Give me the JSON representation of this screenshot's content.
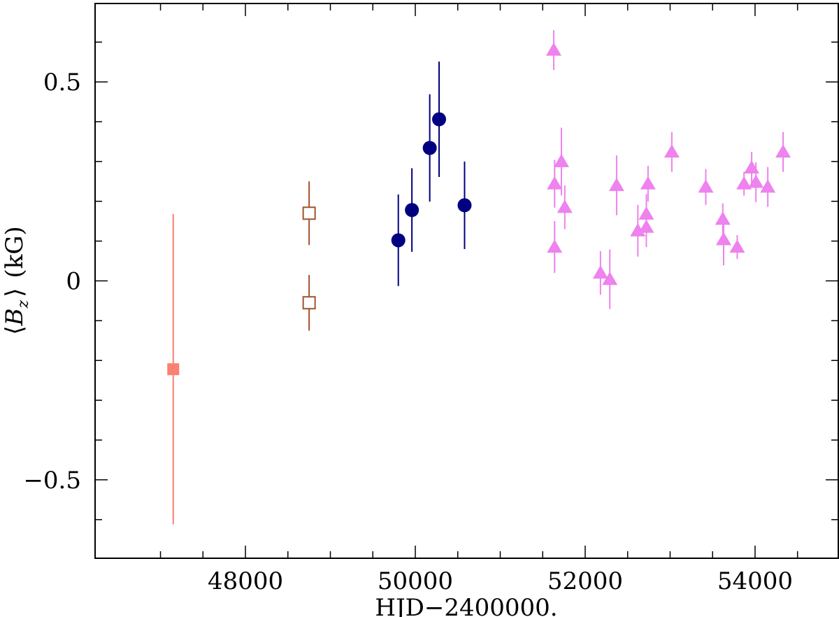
{
  "chart_data": {
    "type": "scatter",
    "title": "",
    "xlabel": "HJD−2400000.",
    "ylabel_parts": {
      "open": "⟨",
      "var": "B",
      "sub": "z",
      "close": "⟩",
      "unit": "(kG)"
    },
    "xlim": [
      46230,
      54980
    ],
    "ylim": [
      -0.697,
      0.697
    ],
    "x_ticks_major": [
      48000,
      50000,
      52000,
      54000
    ],
    "x_tick_labels": [
      "48000",
      "50000",
      "52000",
      "54000"
    ],
    "y_ticks_major": [
      -0.5,
      0,
      0.5
    ],
    "y_tick_labels": [
      "−0.5",
      "0",
      "0.5"
    ],
    "grid": false,
    "series": [
      {
        "marker": "filled-square",
        "color": "#FA8072",
        "points": [
          {
            "x": 47150,
            "y": -0.222,
            "err": 0.39
          }
        ]
      },
      {
        "marker": "open-square",
        "color": "#A0522D",
        "points": [
          {
            "x": 48750,
            "y": 0.17,
            "err": 0.08
          },
          {
            "x": 48750,
            "y": -0.055,
            "err": 0.07
          }
        ]
      },
      {
        "marker": "filled-circle",
        "color": "#000080",
        "points": [
          {
            "x": 49800,
            "y": 0.102,
            "err": 0.115
          },
          {
            "x": 49960,
            "y": 0.178,
            "err": 0.105
          },
          {
            "x": 50170,
            "y": 0.334,
            "err": 0.135
          },
          {
            "x": 50280,
            "y": 0.406,
            "err": 0.145
          },
          {
            "x": 50580,
            "y": 0.19,
            "err": 0.11
          }
        ]
      },
      {
        "marker": "filled-triangle",
        "color": "#EE82EE",
        "points": [
          {
            "x": 51630,
            "y": 0.58,
            "err": 0.05
          },
          {
            "x": 51720,
            "y": 0.3,
            "err": 0.085
          },
          {
            "x": 51640,
            "y": 0.244,
            "err": 0.06
          },
          {
            "x": 51760,
            "y": 0.185,
            "err": 0.055
          },
          {
            "x": 51640,
            "y": 0.085,
            "err": 0.065
          },
          {
            "x": 52180,
            "y": 0.02,
            "err": 0.055
          },
          {
            "x": 52290,
            "y": 0.004,
            "err": 0.075
          },
          {
            "x": 52370,
            "y": 0.24,
            "err": 0.075
          },
          {
            "x": 52620,
            "y": 0.126,
            "err": 0.065
          },
          {
            "x": 52720,
            "y": 0.168,
            "err": 0.05
          },
          {
            "x": 52720,
            "y": 0.135,
            "err": 0.05
          },
          {
            "x": 52740,
            "y": 0.244,
            "err": 0.045
          },
          {
            "x": 53020,
            "y": 0.324,
            "err": 0.05
          },
          {
            "x": 53420,
            "y": 0.236,
            "err": 0.045
          },
          {
            "x": 53620,
            "y": 0.155,
            "err": 0.04
          },
          {
            "x": 53630,
            "y": 0.104,
            "err": 0.065
          },
          {
            "x": 53790,
            "y": 0.085,
            "err": 0.03
          },
          {
            "x": 53870,
            "y": 0.244,
            "err": 0.03
          },
          {
            "x": 53960,
            "y": 0.284,
            "err": 0.04
          },
          {
            "x": 54010,
            "y": 0.248,
            "err": 0.05
          },
          {
            "x": 54150,
            "y": 0.236,
            "err": 0.05
          },
          {
            "x": 54330,
            "y": 0.324,
            "err": 0.05
          }
        ]
      }
    ]
  }
}
